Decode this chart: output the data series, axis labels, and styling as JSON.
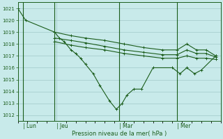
{
  "background_color": "#c8eaea",
  "grid_color": "#a0c8c8",
  "line_color": "#1a5c1a",
  "xlabel": "Pression niveau de la mer( hPa )",
  "ylim": [
    1011.5,
    1021.5
  ],
  "xlim": [
    0,
    21
  ],
  "yticks": [
    1012,
    1013,
    1014,
    1015,
    1016,
    1017,
    1018,
    1019,
    1020,
    1021
  ],
  "xtick_labels": [
    "| Lun",
    "| Jeu",
    "| Mar",
    "| Mer"
  ],
  "xtick_positions": [
    0.5,
    4.0,
    10.5,
    16.5
  ],
  "series": [
    {
      "x": [
        0.0,
        0.8,
        3.8,
        4.3,
        4.8,
        5.5,
        6.0,
        6.5,
        7.0,
        7.8,
        8.5,
        9.5,
        10.2,
        10.8,
        11.3,
        12.0,
        12.8,
        14.0,
        16.0,
        16.8,
        17.5,
        18.3,
        19.0,
        20.5
      ],
      "y": [
        1021.0,
        1020.0,
        1019.0,
        1018.5,
        1018.2,
        1017.5,
        1017.2,
        1016.8,
        1016.3,
        1015.5,
        1014.5,
        1013.2,
        1012.5,
        1013.0,
        1013.7,
        1014.2,
        1014.2,
        1016.0,
        1016.0,
        1015.5,
        1016.0,
        1015.5,
        1015.8,
        1017.0
      ]
    },
    {
      "x": [
        3.8,
        5.5,
        7.0,
        9.0,
        11.0,
        13.0,
        15.0,
        16.5,
        17.5,
        18.5,
        19.5,
        20.5
      ],
      "y": [
        1019.0,
        1018.7,
        1018.5,
        1018.3,
        1018.0,
        1017.7,
        1017.5,
        1017.5,
        1018.0,
        1017.5,
        1017.5,
        1017.0
      ]
    },
    {
      "x": [
        3.8,
        5.5,
        7.0,
        9.0,
        11.0,
        13.0,
        15.0,
        16.5,
        17.5,
        18.5,
        19.5,
        20.5
      ],
      "y": [
        1018.5,
        1018.3,
        1018.1,
        1017.8,
        1017.5,
        1017.3,
        1017.1,
        1017.1,
        1017.5,
        1017.2,
        1017.2,
        1016.9
      ]
    },
    {
      "x": [
        3.8,
        5.5,
        7.0,
        9.0,
        11.0,
        13.0,
        15.0,
        16.5,
        17.5,
        18.5,
        19.5,
        20.5
      ],
      "y": [
        1018.2,
        1017.9,
        1017.7,
        1017.5,
        1017.2,
        1017.0,
        1016.8,
        1016.8,
        1017.0,
        1016.8,
        1016.8,
        1016.7
      ]
    }
  ],
  "vlines_x": [
    0.5,
    3.8,
    10.5,
    16.5
  ],
  "marker": "+",
  "markersize": 3,
  "linewidth": 0.8
}
